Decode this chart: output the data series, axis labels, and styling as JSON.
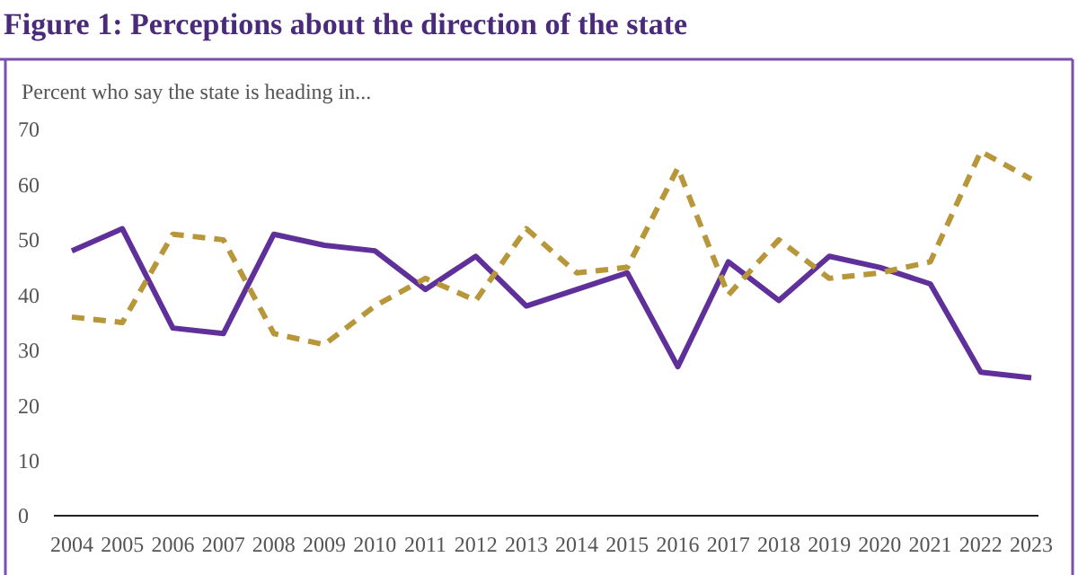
{
  "chart_data": {
    "type": "line",
    "title": "Figure 1: Perceptions about the direction of the state",
    "ylabel": "Percent who say the state is heading in...",
    "categories": [
      "2004",
      "2005",
      "2006",
      "2007",
      "2008",
      "2009",
      "2010",
      "2011",
      "2012",
      "2013",
      "2014",
      "2015",
      "2016",
      "2017",
      "2018",
      "2019",
      "2020",
      "2021",
      "2022",
      "2023"
    ],
    "series": [
      {
        "color": "#60309a",
        "line_style": "solid",
        "values": [
          48,
          52,
          34,
          33,
          51,
          49,
          48,
          41,
          47,
          38,
          41,
          44,
          27,
          46,
          39,
          47,
          45,
          42,
          26,
          25
        ]
      },
      {
        "color": "#b8963a",
        "line_style": "dashed",
        "values": [
          36,
          35,
          51,
          50,
          33,
          31,
          38,
          43,
          39,
          52,
          44,
          45,
          63,
          40,
          50,
          43,
          44,
          46,
          66,
          61
        ]
      }
    ],
    "ylim": [
      0,
      70
    ],
    "yticks": [
      0,
      10,
      20,
      30,
      40,
      50,
      60,
      70
    ]
  }
}
